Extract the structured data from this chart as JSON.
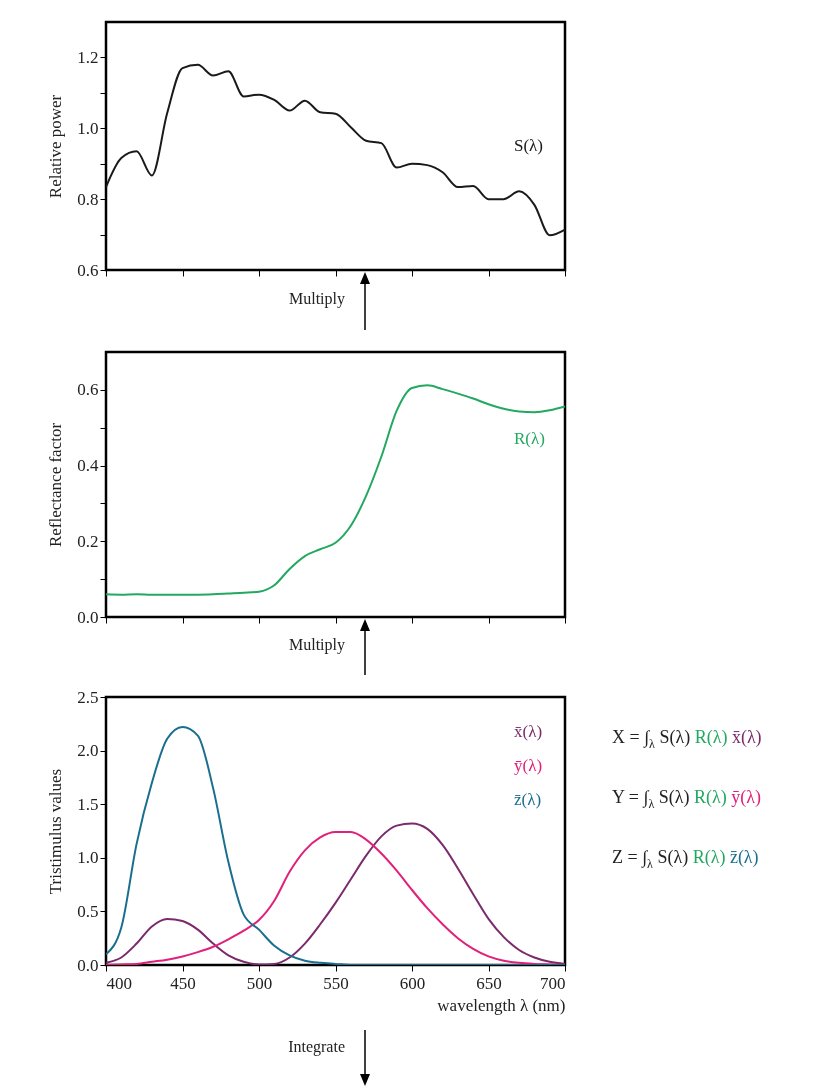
{
  "chart_data": [
    {
      "type": "line",
      "ylabel": "Relative power",
      "xlim": [
        400,
        700
      ],
      "xticks": [
        400,
        450,
        500,
        550,
        600,
        650,
        700
      ],
      "ylim": [
        0.6,
        1.3
      ],
      "yticks": [
        0.6,
        {
          "value": 0.7,
          "label": null
        },
        0.8,
        {
          "value": 0.9,
          "label": null
        },
        {
          "value": 1,
          "label": "1.0"
        },
        {
          "value": 1.1,
          "label": null
        },
        1.2
      ],
      "tick_labels": "y",
      "annotations": [
        "Multiply"
      ],
      "x": [
        400,
        410,
        420,
        430,
        440,
        450,
        460,
        470,
        480,
        490,
        500,
        510,
        520,
        530,
        540,
        550,
        560,
        570,
        580,
        590,
        600,
        610,
        620,
        630,
        640,
        650,
        660,
        670,
        680,
        690,
        700
      ],
      "series": [
        {
          "name": "S(λ)",
          "color": "#1a1a1a",
          "values": [
            0.834,
            0.916,
            0.935,
            0.867,
            1.043,
            1.17,
            1.179,
            1.149,
            1.161,
            1.09,
            1.095,
            1.08,
            1.05,
            1.078,
            1.045,
            1.041,
            1.003,
            0.965,
            0.958,
            0.889,
            0.9,
            0.896,
            0.876,
            0.834,
            0.837,
            0.8,
            0.8,
            0.822,
            0.784,
            0.698,
            0.714
          ]
        }
      ]
    },
    {
      "type": "line",
      "ylabel": "Reflectance factor",
      "xlim": [
        400,
        700
      ],
      "xticks": [
        400,
        450,
        500,
        550,
        600,
        650,
        700
      ],
      "ylim": [
        0,
        0.7
      ],
      "yticks": [
        {
          "value": 0,
          "label": "0.0"
        },
        {
          "value": 0.1,
          "label": null
        },
        0.2,
        {
          "value": 0.3,
          "label": null
        },
        0.4,
        {
          "value": 0.5,
          "label": null
        },
        0.6
      ],
      "tick_labels": "y",
      "annotations": [
        "Multiply"
      ],
      "x": [
        400,
        410,
        420,
        430,
        440,
        450,
        460,
        470,
        480,
        490,
        500,
        510,
        520,
        530,
        540,
        550,
        560,
        570,
        580,
        590,
        600,
        610,
        620,
        630,
        640,
        650,
        660,
        670,
        680,
        690,
        700
      ],
      "series": [
        {
          "name": "R(λ)",
          "color": "#22a860",
          "values": [
            0.06,
            0.059,
            0.06,
            0.059,
            0.059,
            0.059,
            0.059,
            0.06,
            0.062,
            0.064,
            0.067,
            0.084,
            0.127,
            0.161,
            0.179,
            0.196,
            0.241,
            0.32,
            0.424,
            0.545,
            0.605,
            0.612,
            0.602,
            0.59,
            0.577,
            0.562,
            0.55,
            0.543,
            0.541,
            0.546,
            0.556
          ]
        }
      ]
    },
    {
      "type": "line",
      "xlabel": "wavelength λ (nm)",
      "ylabel": "Tristimulus values",
      "xlim": [
        400,
        700
      ],
      "xticks": [
        400,
        450,
        500,
        550,
        600,
        650,
        700
      ],
      "ylim": [
        0,
        2.5
      ],
      "yticks": [
        {
          "value": 0,
          "label": "0.0"
        },
        0.5,
        {
          "value": 1,
          "label": "1.0"
        },
        1.5,
        {
          "value": 2,
          "label": "2.0"
        },
        2.5
      ],
      "annotations": [
        "Integrate",
        "X = ∫$_{λ}$ S(λ) R(λ) x̄(λ)",
        "Y = ∫$_{λ}$ S(λ) R(λ) ȳ(λ)",
        "Z = ∫$_{λ}$ S(λ) R(λ) z̄(λ)"
      ],
      "x": [
        400,
        410,
        420,
        430,
        440,
        450,
        460,
        470,
        480,
        490,
        500,
        510,
        520,
        530,
        540,
        550,
        560,
        570,
        580,
        590,
        600,
        610,
        620,
        630,
        640,
        650,
        660,
        670,
        680,
        690,
        700
      ],
      "series": [
        {
          "name": "x̄(λ)",
          "color": "#7b2a6b",
          "values": [
            0.02,
            0.07,
            0.2,
            0.36,
            0.43,
            0.41,
            0.33,
            0.2,
            0.09,
            0.03,
            0.005,
            0.01,
            0.07,
            0.2,
            0.38,
            0.58,
            0.8,
            1.02,
            1.2,
            1.3,
            1.32,
            1.27,
            1.12,
            0.9,
            0.66,
            0.43,
            0.26,
            0.14,
            0.07,
            0.03,
            0.01
          ]
        },
        {
          "name": "ȳ(λ)",
          "color": "#e0207a",
          "values": [
            0,
            0.005,
            0.01,
            0.03,
            0.05,
            0.08,
            0.12,
            0.17,
            0.24,
            0.32,
            0.42,
            0.6,
            0.87,
            1.07,
            1.19,
            1.24,
            1.24,
            1.17,
            1.04,
            0.88,
            0.7,
            0.53,
            0.38,
            0.25,
            0.15,
            0.08,
            0.04,
            0.02,
            0.01,
            0.005,
            0
          ]
        },
        {
          "name": "z̄(λ)",
          "color": "#1a6e8e",
          "values": [
            0.1,
            0.35,
            1.13,
            1.7,
            2.11,
            2.22,
            2.14,
            1.65,
            0.96,
            0.47,
            0.33,
            0.18,
            0.09,
            0.04,
            0.02,
            0.01,
            0,
            0,
            0,
            0,
            0,
            0,
            0,
            0,
            0,
            0,
            0,
            0,
            0,
            0,
            0
          ]
        }
      ]
    }
  ]
}
